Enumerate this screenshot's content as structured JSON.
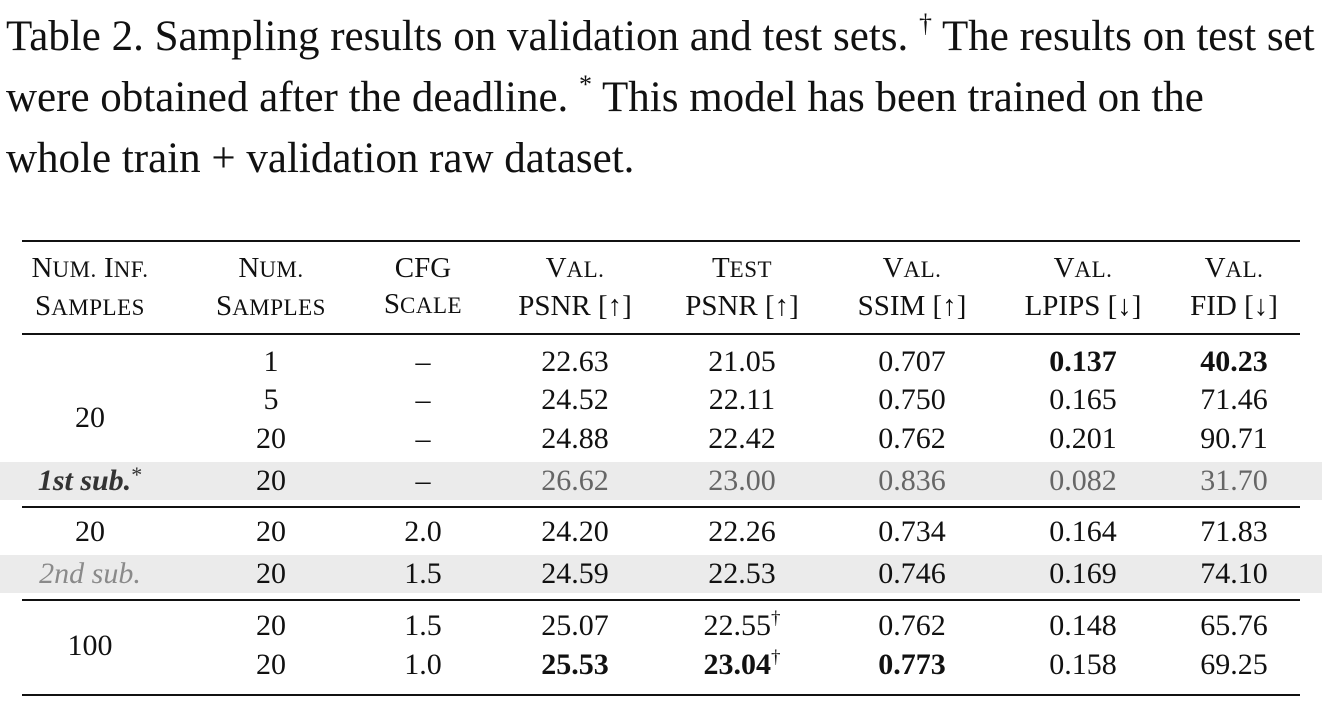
{
  "caption": {
    "part1": "Table 2. Sampling results on validation and test sets.",
    "dagger": "†",
    "part2": "The results on test set were obtained after the deadline.",
    "star": "*",
    "part3": "This model has been trained on the whole train + validation raw dataset."
  },
  "headers": [
    {
      "line1": "Num. Inf.",
      "line2": "Samples"
    },
    {
      "line1": "Num.",
      "line2": "Samples"
    },
    {
      "line1": "CFG",
      "line2": "Scale"
    },
    {
      "line1": "Val.",
      "line2": "PSNR [↑]"
    },
    {
      "line1": "Test",
      "line2": "PSNR [↑]"
    },
    {
      "line1": "Val.",
      "line2": "SSIM [↑]"
    },
    {
      "line1": "Val.",
      "line2": "LPIPS [↓]"
    },
    {
      "line1": "Val.",
      "line2": "FID [↓]"
    }
  ],
  "groups": [
    {
      "label": "20",
      "rows": [
        {
          "num_samples": "1",
          "cfg": "–",
          "val_psnr": "22.63",
          "test_psnr": "21.05",
          "ssim": "0.707",
          "lpips": "0.137",
          "fid": "40.23",
          "dagger": ""
        },
        {
          "num_samples": "5",
          "cfg": "–",
          "val_psnr": "24.52",
          "test_psnr": "22.11",
          "ssim": "0.750",
          "lpips": "0.165",
          "fid": "71.46",
          "dagger": ""
        },
        {
          "num_samples": "20",
          "cfg": "–",
          "val_psnr": "24.88",
          "test_psnr": "22.42",
          "ssim": "0.762",
          "lpips": "0.201",
          "fid": "90.71",
          "dagger": ""
        }
      ],
      "submission": {
        "label": "1st sub.",
        "mark": "*",
        "num_samples": "20",
        "cfg": "–",
        "val_psnr": "26.62",
        "test_psnr": "23.00",
        "ssim": "0.836",
        "lpips": "0.082",
        "fid": "31.70"
      }
    },
    {
      "label": "20",
      "rows": [
        {
          "num_samples": "20",
          "cfg": "2.0",
          "val_psnr": "24.20",
          "test_psnr": "22.26",
          "ssim": "0.734",
          "lpips": "0.164",
          "fid": "71.83",
          "dagger": ""
        }
      ],
      "submission": {
        "label": "2nd sub.",
        "mark": "",
        "num_samples": "20",
        "cfg": "1.5",
        "val_psnr": "24.59",
        "test_psnr": "22.53",
        "ssim": "0.746",
        "lpips": "0.169",
        "fid": "74.10"
      }
    },
    {
      "label": "100",
      "rows": [
        {
          "num_samples": "20",
          "cfg": "1.5",
          "val_psnr": "25.07",
          "test_psnr": "22.55",
          "ssim": "0.762",
          "lpips": "0.148",
          "fid": "65.76",
          "dagger": "†"
        },
        {
          "num_samples": "20",
          "cfg": "1.0",
          "val_psnr": "25.53",
          "test_psnr": "23.04",
          "ssim": "0.773",
          "lpips": "0.158",
          "fid": "69.25",
          "dagger": "†"
        }
      ]
    }
  ]
}
